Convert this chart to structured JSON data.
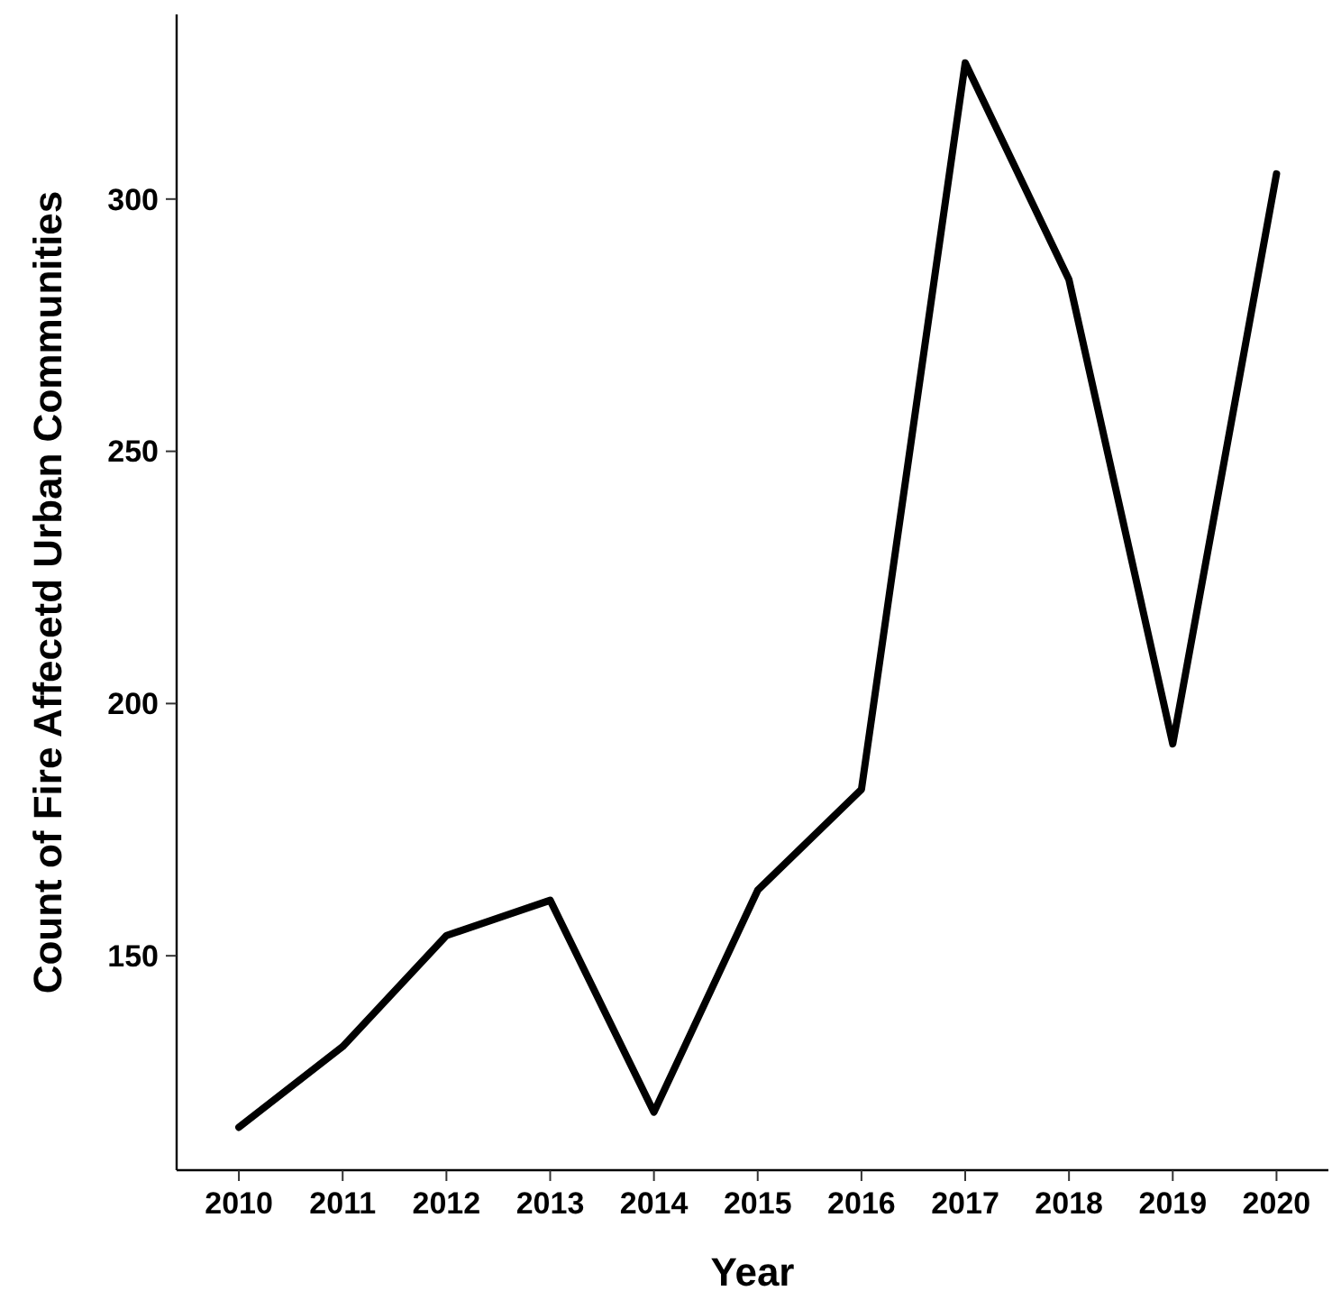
{
  "chart_data": {
    "type": "line",
    "xlabel": "Year",
    "ylabel": "Count of Fire Affecetd Urban Communities",
    "x": [
      2010,
      2011,
      2012,
      2013,
      2014,
      2015,
      2016,
      2017,
      2018,
      2019,
      2020
    ],
    "series": [
      {
        "color": "#000000",
        "values": [
          116,
          132,
          154,
          161,
          119,
          163,
          183,
          327,
          284,
          192,
          305
        ]
      }
    ],
    "xlim": [
      2009.4,
      2020.5
    ],
    "xticks": [
      2010,
      2011,
      2012,
      2013,
      2014,
      2015,
      2016,
      2017,
      2018,
      2019,
      2020
    ],
    "ylim": [
      107.5,
      336.6
    ],
    "yticks": [
      150,
      200,
      250,
      300
    ],
    "grid": false,
    "marker": "none",
    "line_style": "solid"
  }
}
